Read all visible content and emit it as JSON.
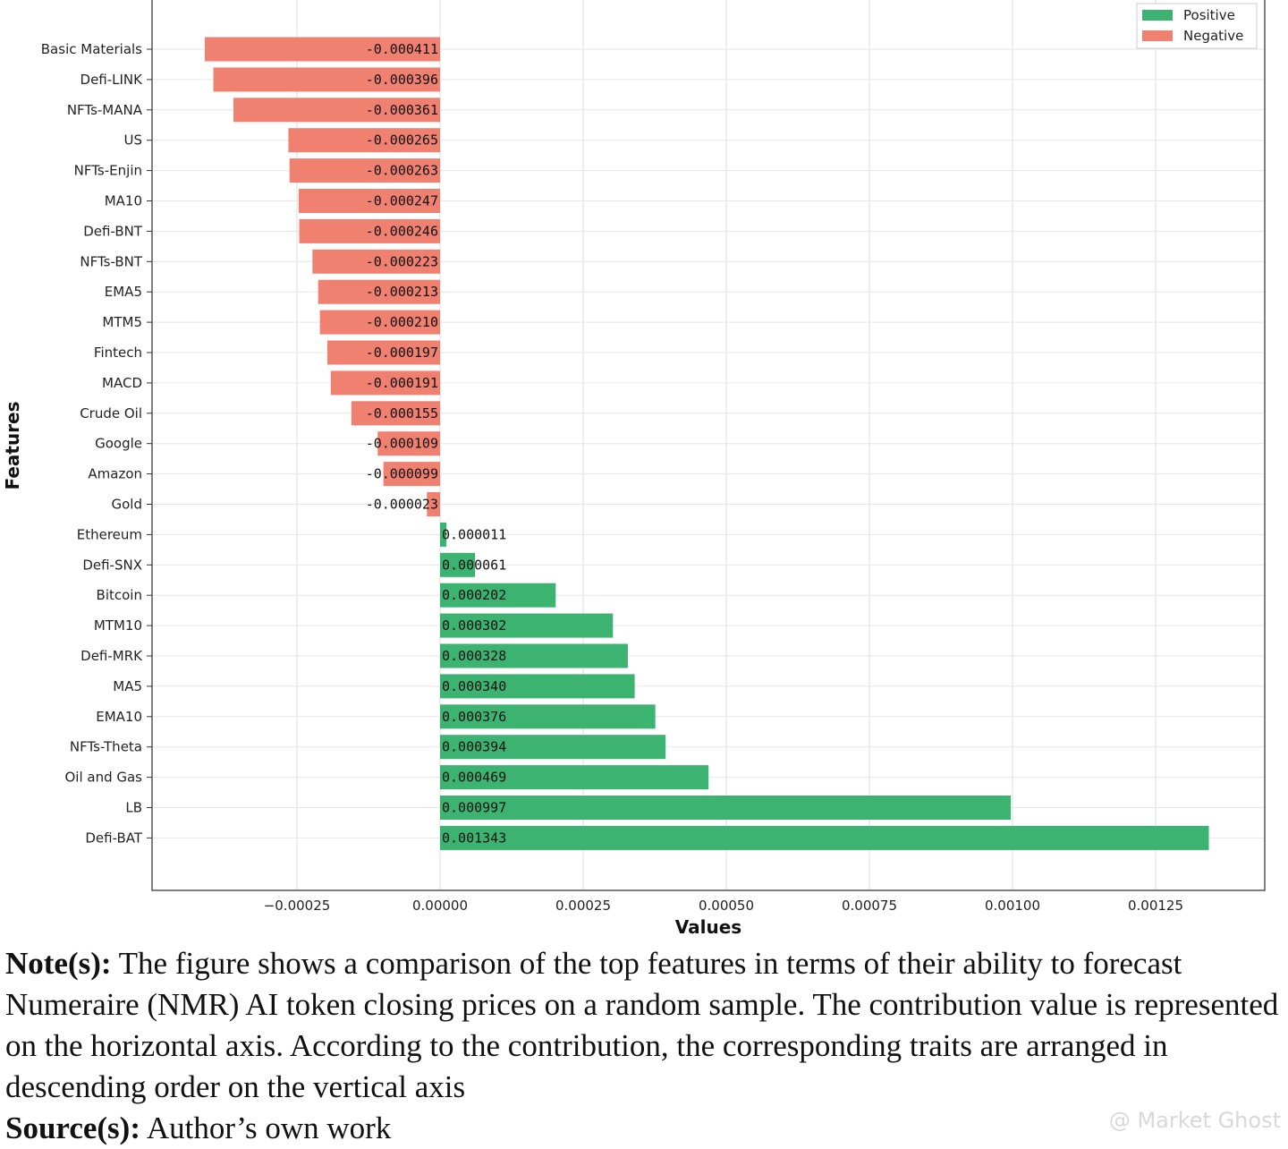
{
  "chart_data": {
    "type": "bar",
    "orientation": "horizontal",
    "xlabel": "Values",
    "ylabel": "Features",
    "xlim": [
      -0.0005,
      0.00143
    ],
    "xticks": [
      -0.00025,
      0.0,
      0.00025,
      0.0005,
      0.00075,
      0.001,
      0.00125
    ],
    "xtick_labels": [
      "−0.00025",
      "0.00000",
      "0.00025",
      "0.00050",
      "0.00075",
      "0.00100",
      "0.00125"
    ],
    "grid": true,
    "legend": {
      "placement": "top-right",
      "entries": [
        {
          "label": "Positive",
          "color": "#3cb371"
        },
        {
          "label": "Negative",
          "color": "#f08070"
        }
      ]
    },
    "bars": [
      {
        "feature": "Basic Materials",
        "value": -0.000411,
        "label": "-0.000411"
      },
      {
        "feature": "Defi-LINK",
        "value": -0.000396,
        "label": "-0.000396"
      },
      {
        "feature": "NFTs-MANA",
        "value": -0.000361,
        "label": "-0.000361"
      },
      {
        "feature": "US",
        "value": -0.000265,
        "label": "-0.000265"
      },
      {
        "feature": "NFTs-Enjin",
        "value": -0.000263,
        "label": "-0.000263"
      },
      {
        "feature": "MA10",
        "value": -0.000247,
        "label": "-0.000247"
      },
      {
        "feature": "Defi-BNT",
        "value": -0.000246,
        "label": "-0.000246"
      },
      {
        "feature": "NFTs-BNT",
        "value": -0.000223,
        "label": "-0.000223"
      },
      {
        "feature": "EMA5",
        "value": -0.000213,
        "label": "-0.000213"
      },
      {
        "feature": "MTM5",
        "value": -0.00021,
        "label": "-0.000210"
      },
      {
        "feature": "Fintech",
        "value": -0.000197,
        "label": "-0.000197"
      },
      {
        "feature": "MACD",
        "value": -0.000191,
        "label": "-0.000191"
      },
      {
        "feature": "Crude Oil",
        "value": -0.000155,
        "label": "-0.000155"
      },
      {
        "feature": "Google",
        "value": -0.000109,
        "label": "-0.000109"
      },
      {
        "feature": "Amazon",
        "value": -9.9e-05,
        "label": "-0.000099"
      },
      {
        "feature": "Gold",
        "value": -2.3e-05,
        "label": "-0.000023"
      },
      {
        "feature": "Ethereum",
        "value": 1.1e-05,
        "label": "0.000011"
      },
      {
        "feature": "Defi-SNX",
        "value": 6.1e-05,
        "label": "0.000061"
      },
      {
        "feature": "Bitcoin",
        "value": 0.000202,
        "label": "0.000202"
      },
      {
        "feature": "MTM10",
        "value": 0.000302,
        "label": "0.000302"
      },
      {
        "feature": "Defi-MRK",
        "value": 0.000328,
        "label": "0.000328"
      },
      {
        "feature": "MA5",
        "value": 0.00034,
        "label": "0.000340"
      },
      {
        "feature": "EMA10",
        "value": 0.000376,
        "label": "0.000376"
      },
      {
        "feature": "NFTs-Theta",
        "value": 0.000394,
        "label": "0.000394"
      },
      {
        "feature": "Oil and Gas",
        "value": 0.000469,
        "label": "0.000469"
      },
      {
        "feature": "LB",
        "value": 0.000997,
        "label": "0.000997"
      },
      {
        "feature": "Defi-BAT",
        "value": 0.001343,
        "label": "0.001343"
      }
    ]
  },
  "caption": {
    "note_label": "Note(s):",
    "note_text": " The figure shows a comparison of the top features in terms of their ability to forecast Numeraire (NMR) AI token closing prices on a random sample. The contribution value is represented on the horizontal axis. According to the contribution, the corresponding traits are arranged in descending order on the vertical axis",
    "source_label": "Source(s):",
    "source_text": " Author’s own work"
  },
  "watermark": "@ Market Ghost"
}
